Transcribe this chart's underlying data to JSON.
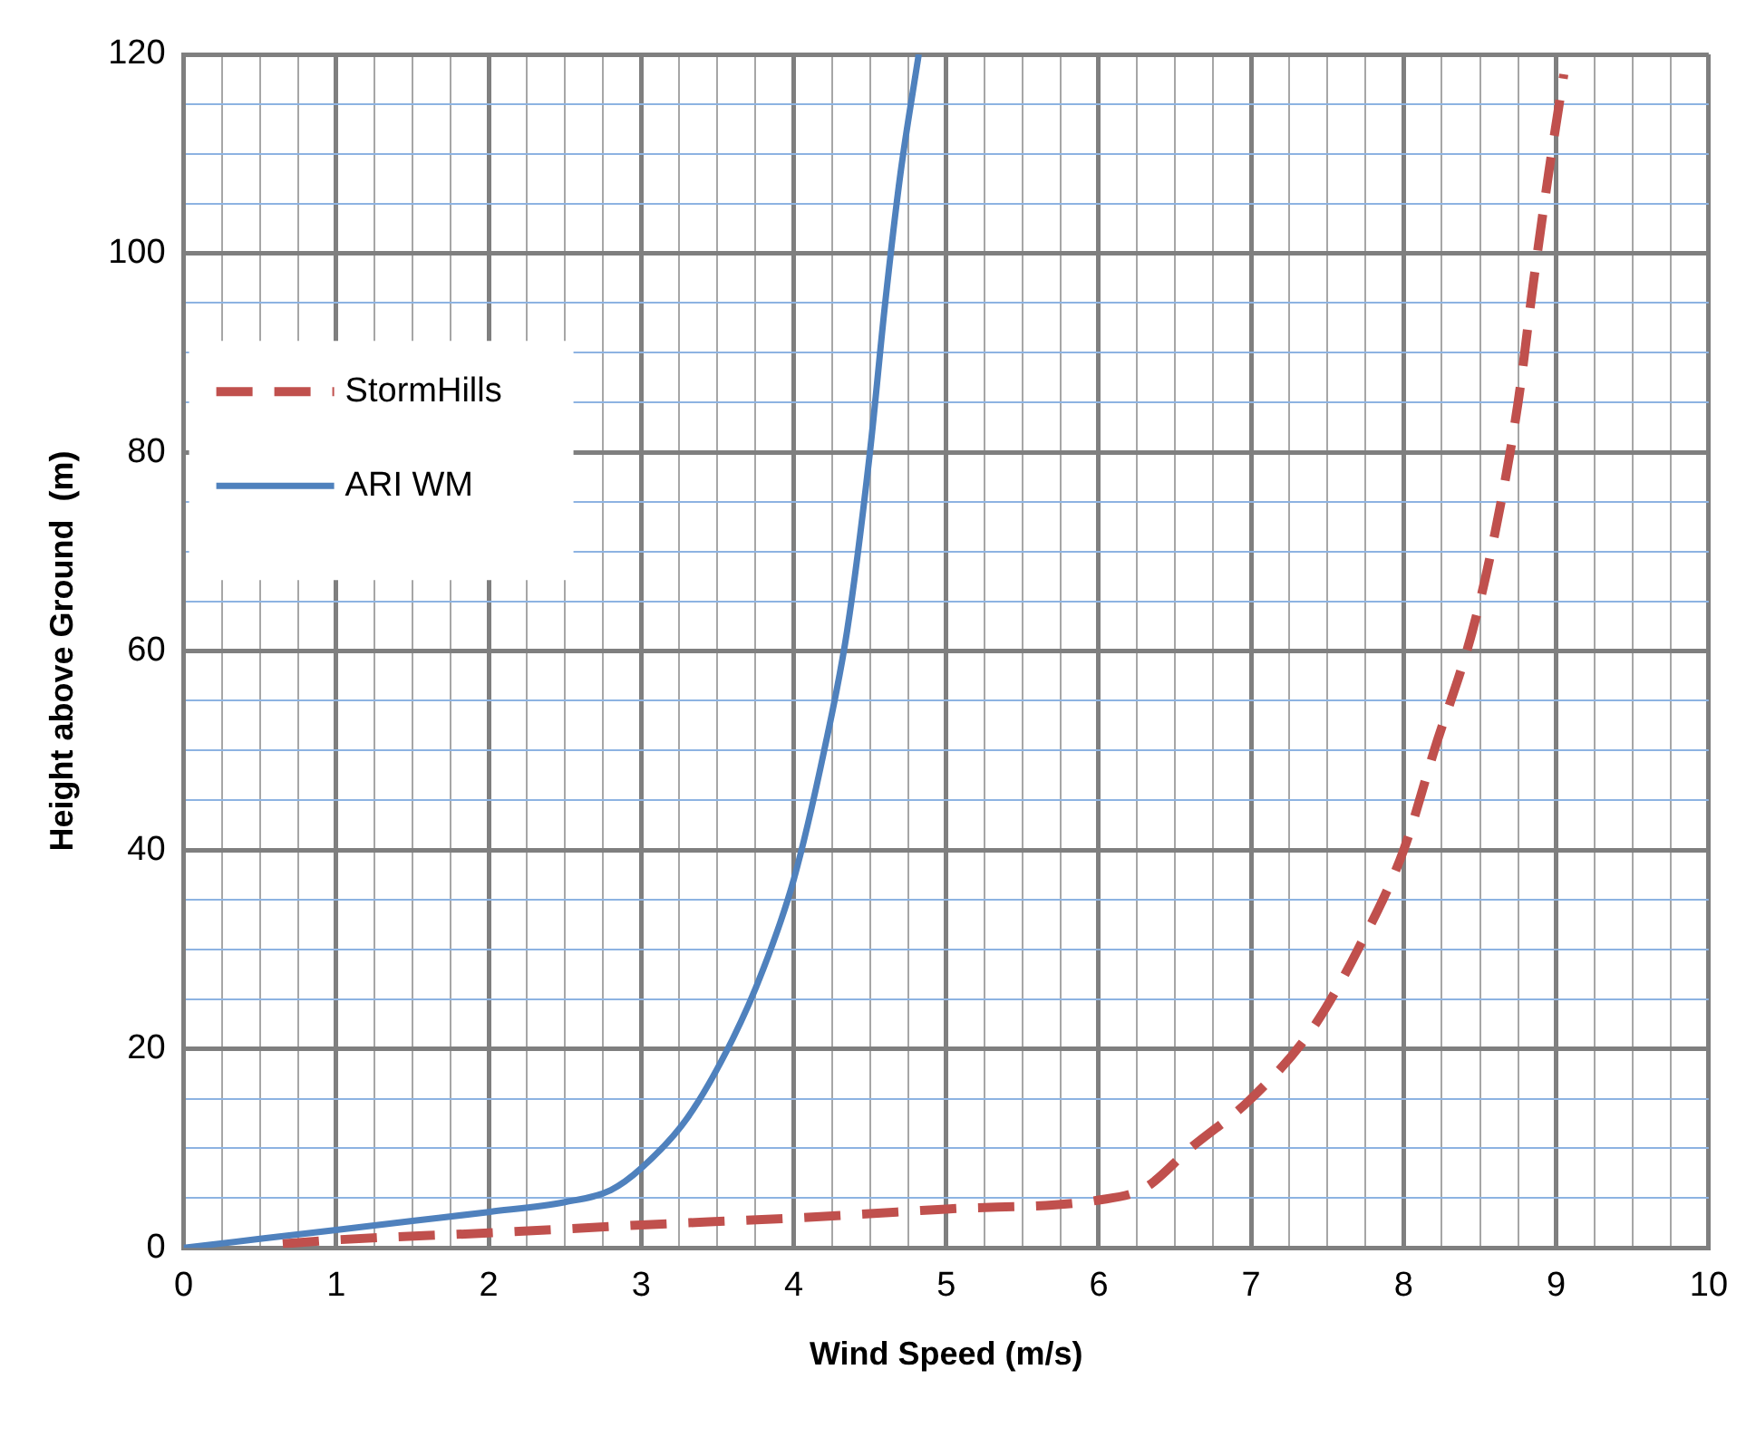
{
  "chart_data": {
    "type": "line",
    "xlabel": "Wind Speed (m/s)",
    "ylabel": "Height above Ground  (m)",
    "xlim": [
      0,
      10
    ],
    "ylim": [
      0,
      120
    ],
    "xticks": [
      0,
      {
        "value": 0.25,
        "label": null
      },
      {
        "value": 0.5,
        "label": null
      },
      {
        "value": 0.75,
        "label": null
      },
      1,
      {
        "value": 1.25,
        "label": null
      },
      {
        "value": 1.5,
        "label": null
      },
      {
        "value": 1.75,
        "label": null
      },
      2,
      {
        "value": 2.25,
        "label": null
      },
      {
        "value": 2.5,
        "label": null
      },
      {
        "value": 2.75,
        "label": null
      },
      3,
      {
        "value": 3.25,
        "label": null
      },
      {
        "value": 3.5,
        "label": null
      },
      {
        "value": 3.75,
        "label": null
      },
      4,
      {
        "value": 4.25,
        "label": null
      },
      {
        "value": 4.5,
        "label": null
      },
      {
        "value": 4.75,
        "label": null
      },
      5,
      {
        "value": 5.25,
        "label": null
      },
      {
        "value": 5.5,
        "label": null
      },
      {
        "value": 5.75,
        "label": null
      },
      6,
      {
        "value": 6.25,
        "label": null
      },
      {
        "value": 6.5,
        "label": null
      },
      {
        "value": 6.75,
        "label": null
      },
      7,
      {
        "value": 7.25,
        "label": null
      },
      {
        "value": 7.5,
        "label": null
      },
      {
        "value": 7.75,
        "label": null
      },
      8,
      {
        "value": 8.25,
        "label": null
      },
      {
        "value": 8.5,
        "label": null
      },
      {
        "value": 8.75,
        "label": null
      },
      9,
      {
        "value": 9.25,
        "label": null
      },
      {
        "value": 9.5,
        "label": null
      },
      {
        "value": 9.75,
        "label": null
      },
      10
    ],
    "yticks": [
      0,
      {
        "value": 5,
        "label": null
      },
      {
        "value": 10,
        "label": null
      },
      {
        "value": 15,
        "label": null
      },
      20,
      {
        "value": 25,
        "label": null
      },
      {
        "value": 30,
        "label": null
      },
      {
        "value": 35,
        "label": null
      },
      40,
      {
        "value": 45,
        "label": null
      },
      {
        "value": 50,
        "label": null
      },
      {
        "value": 55,
        "label": null
      },
      60,
      {
        "value": 65,
        "label": null
      },
      {
        "value": 70,
        "label": null
      },
      {
        "value": 75,
        "label": null
      },
      80,
      {
        "value": 85,
        "label": null
      },
      {
        "value": 90,
        "label": null
      },
      {
        "value": 95,
        "label": null
      },
      100,
      {
        "value": 105,
        "label": null
      },
      {
        "value": 110,
        "label": null
      },
      {
        "value": 115,
        "label": null
      },
      120
    ],
    "grid": true,
    "legend": "left",
    "marker": "none",
    "series": [
      {
        "name": "StormHills",
        "color": "#c0504d",
        "line_style": "dashed",
        "x": [
          0.65,
          1,
          2,
          3,
          4,
          5,
          6,
          6.3,
          6.6,
          7,
          7.4,
          7.7,
          8,
          8.2,
          8.45,
          8.6,
          8.75,
          8.85,
          8.95,
          9.05
        ],
        "values": [
          0.4,
          0.8,
          1.5,
          2.3,
          3,
          3.9,
          4.8,
          6,
          10,
          15,
          22,
          30,
          40,
          50,
          62,
          72,
          85,
          97,
          108,
          118
        ]
      },
      {
        "name": "ARI WM",
        "color": "#4f81bd",
        "line_style": "solid",
        "x": [
          0,
          0.5,
          1,
          1.5,
          2,
          2.5,
          2.8,
          3,
          3.3,
          3.6,
          3.8,
          4,
          4.2,
          4.35,
          4.5,
          4.6,
          4.7,
          4.82
        ],
        "values": [
          0,
          0.9,
          1.8,
          2.7,
          3.6,
          4.6,
          5.8,
          8,
          13,
          21,
          28,
          37,
          50,
          62,
          80,
          95,
          108,
          120
        ]
      }
    ]
  }
}
